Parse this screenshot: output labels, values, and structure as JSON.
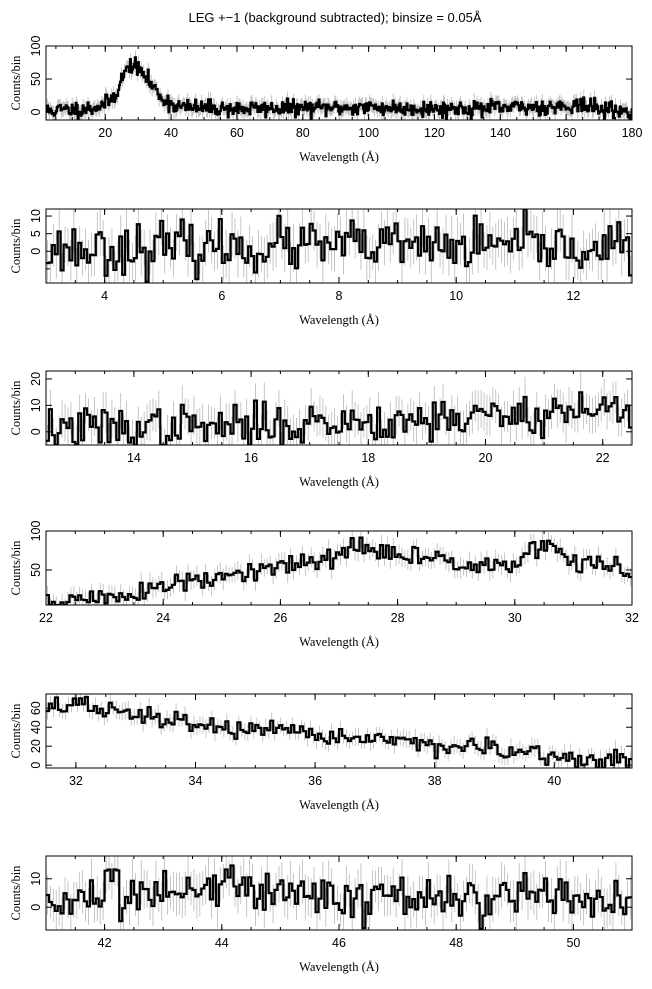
{
  "title": "LEG +−1 (background subtracted); binsize = 0.05Å",
  "chart_data": [
    {
      "type": "line",
      "subtype": "step-histogram-with-errorbars",
      "xlabel": "Wavelength (Å)",
      "ylabel": "Counts/bin",
      "xlim": [
        2,
        180
      ],
      "ylim": [
        -12,
        100
      ],
      "xticks": [
        20,
        40,
        60,
        80,
        100,
        120,
        140,
        160,
        180
      ],
      "yticks": [
        0,
        50,
        100
      ],
      "profile": [
        [
          2,
          2
        ],
        [
          10,
          4
        ],
        [
          16,
          6
        ],
        [
          20,
          12
        ],
        [
          23,
          25
        ],
        [
          25,
          50
        ],
        [
          27,
          68
        ],
        [
          28,
          72
        ],
        [
          30,
          66
        ],
        [
          32,
          55
        ],
        [
          35,
          35
        ],
        [
          38,
          18
        ],
        [
          41,
          10
        ],
        [
          45,
          7
        ],
        [
          60,
          5
        ],
        [
          80,
          6
        ],
        [
          100,
          7
        ],
        [
          120,
          5
        ],
        [
          140,
          6
        ],
        [
          160,
          9
        ],
        [
          162,
          12
        ],
        [
          170,
          5
        ],
        [
          175,
          3
        ],
        [
          178,
          0
        ],
        [
          180,
          0
        ]
      ],
      "noise": 6,
      "bin": 0.3,
      "seed": 11
    },
    {
      "type": "line",
      "subtype": "step-histogram-with-errorbars",
      "xlabel": "Wavelength (Å)",
      "ylabel": "Counts/bin",
      "xlim": [
        3,
        13
      ],
      "ylim": [
        -9,
        12
      ],
      "xticks": [
        4,
        6,
        8,
        10,
        12
      ],
      "yticks": [
        0,
        5,
        10
      ],
      "yminor": [
        -5
      ],
      "profile": [
        [
          3,
          0.5
        ],
        [
          8,
          1.5
        ],
        [
          13,
          1
        ]
      ],
      "noise": 3.5,
      "bin": 0.05,
      "seed": 23
    },
    {
      "type": "line",
      "subtype": "step-histogram-with-errorbars",
      "xlabel": "Wavelength (Å)",
      "ylabel": "Counts/bin",
      "xlim": [
        12.5,
        22.5
      ],
      "ylim": [
        -5,
        23
      ],
      "xticks": [
        14,
        16,
        18,
        20,
        22
      ],
      "yticks": [
        0,
        10,
        20
      ],
      "profile": [
        [
          12.5,
          1
        ],
        [
          16,
          2
        ],
        [
          18,
          4
        ],
        [
          20,
          6
        ],
        [
          22.5,
          9
        ]
      ],
      "noise": 4,
      "bin": 0.05,
      "seed": 37
    },
    {
      "type": "line",
      "subtype": "step-histogram-with-errorbars",
      "xlabel": "Wavelength (Å)",
      "ylabel": "Counts/bin",
      "xlim": [
        22,
        32
      ],
      "ylim": [
        5,
        100
      ],
      "xticks": [
        22,
        24,
        26,
        28,
        30,
        32
      ],
      "yticks": [
        50,
        100
      ],
      "profile": [
        [
          22,
          8
        ],
        [
          23,
          14
        ],
        [
          24,
          28
        ],
        [
          25,
          40
        ],
        [
          26,
          52
        ],
        [
          27,
          68
        ],
        [
          27.3,
          80
        ],
        [
          28,
          68
        ],
        [
          29,
          62
        ],
        [
          30,
          56
        ],
        [
          30.6,
          85
        ],
        [
          31,
          60
        ],
        [
          32,
          50
        ]
      ],
      "noise": 7,
      "bin": 0.05,
      "seed": 51
    },
    {
      "type": "line",
      "subtype": "step-histogram-with-errorbars",
      "xlabel": "Wavelength (Å)",
      "ylabel": "Counts/bin",
      "xlim": [
        31.5,
        41.3
      ],
      "ylim": [
        -3,
        75
      ],
      "xticks": [
        32,
        34,
        36,
        38,
        40
      ],
      "yticks": [
        0,
        20,
        40,
        60
      ],
      "profile": [
        [
          31.5,
          62
        ],
        [
          32,
          64
        ],
        [
          33,
          52
        ],
        [
          34,
          44
        ],
        [
          35,
          35
        ],
        [
          36,
          32
        ],
        [
          37,
          28
        ],
        [
          38,
          22
        ],
        [
          39,
          15
        ],
        [
          40,
          8
        ],
        [
          41.3,
          3
        ]
      ],
      "noise": 5,
      "bin": 0.05,
      "seed": 67
    },
    {
      "type": "line",
      "subtype": "step-histogram-with-errorbars",
      "xlabel": "Wavelength (Å)",
      "ylabel": "Counts/bin",
      "xlim": [
        41,
        51
      ],
      "ylim": [
        -8,
        18
      ],
      "xticks": [
        42,
        44,
        46,
        48,
        50
      ],
      "yticks": [
        0,
        10
      ],
      "profile": [
        [
          41,
          2
        ],
        [
          42,
          3
        ],
        [
          43,
          5
        ],
        [
          44,
          9
        ],
        [
          45,
          6
        ],
        [
          46,
          4
        ],
        [
          48,
          3
        ],
        [
          50,
          2
        ],
        [
          51,
          2
        ]
      ],
      "noise": 4,
      "bin": 0.05,
      "seed": 83
    }
  ]
}
